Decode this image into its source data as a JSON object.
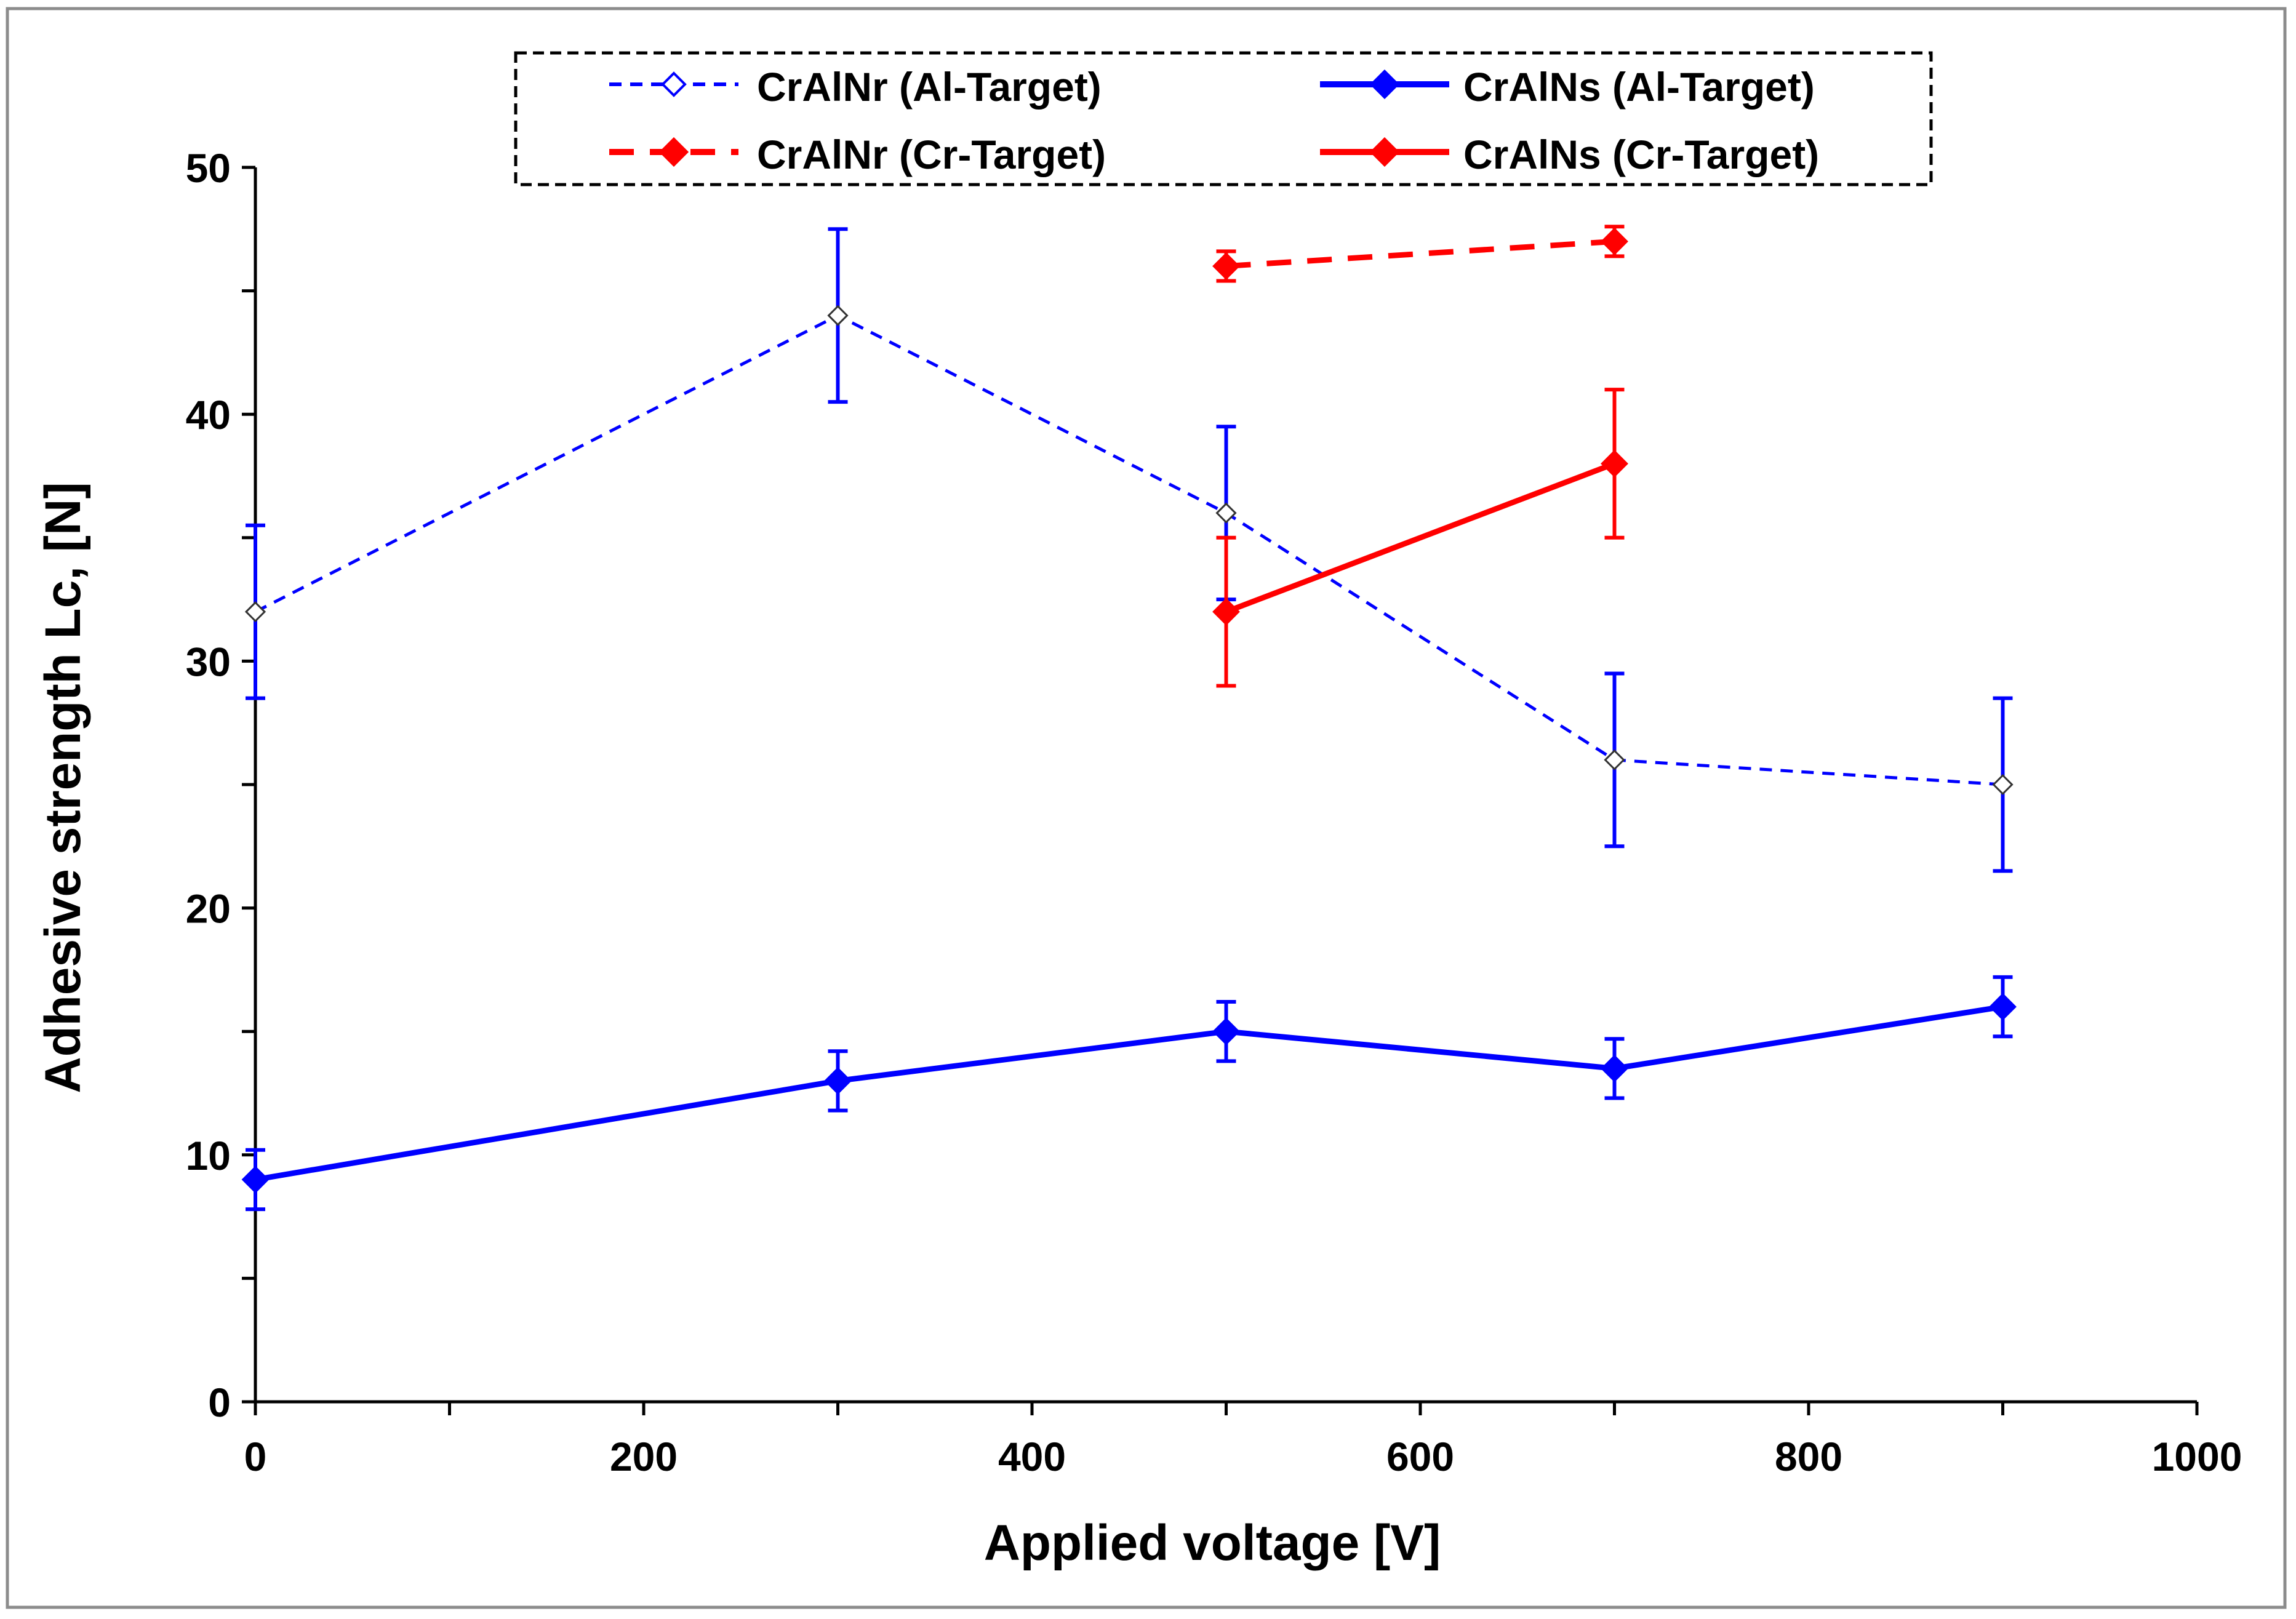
{
  "chart_data": {
    "type": "line",
    "title": "",
    "xlabel": "Applied voltage [V]",
    "ylabel": "Adhesive strength Lc, [N]",
    "xlim": [
      0,
      1000
    ],
    "ylim": [
      0,
      50
    ],
    "xticks": [
      0,
      200,
      400,
      600,
      800,
      1000
    ],
    "yticks": [
      0,
      10,
      20,
      30,
      40,
      50
    ],
    "xtick_labels": [
      "0",
      "200",
      "400",
      "600",
      "800",
      "1000"
    ],
    "ytick_labels": [
      "0",
      "10",
      "20",
      "30",
      "40",
      "50"
    ],
    "grid": false,
    "legend_position": "top",
    "series": [
      {
        "name": "CrAlNr (Al-Target)",
        "color": "#0000ff",
        "line_style": "dashed-fine",
        "marker": "diamond-open",
        "x": [
          0,
          300,
          500,
          700,
          900
        ],
        "y": [
          32,
          44,
          36,
          26,
          25
        ],
        "error": [
          3.5,
          3.5,
          3.5,
          3.5,
          3.5
        ]
      },
      {
        "name": "CrAlNs (Al-Target)",
        "color": "#0000ff",
        "line_style": "solid",
        "marker": "diamond-filled",
        "x": [
          0,
          300,
          500,
          700,
          900
        ],
        "y": [
          9,
          13,
          15,
          13.5,
          16
        ],
        "error": [
          1.2,
          1.2,
          1.2,
          1.2,
          1.2
        ]
      },
      {
        "name": "CrAlNr (Cr-Target)",
        "color": "#ff0000",
        "line_style": "dashed-bold",
        "marker": "diamond-filled",
        "x": [
          500,
          700
        ],
        "y": [
          46,
          47
        ],
        "error": [
          0.6,
          0.6
        ]
      },
      {
        "name": "CrAlNs (Cr-Target)",
        "color": "#ff0000",
        "line_style": "solid",
        "marker": "diamond-filled",
        "x": [
          500,
          700
        ],
        "y": [
          32,
          38
        ],
        "error": [
          3,
          3
        ]
      }
    ]
  }
}
